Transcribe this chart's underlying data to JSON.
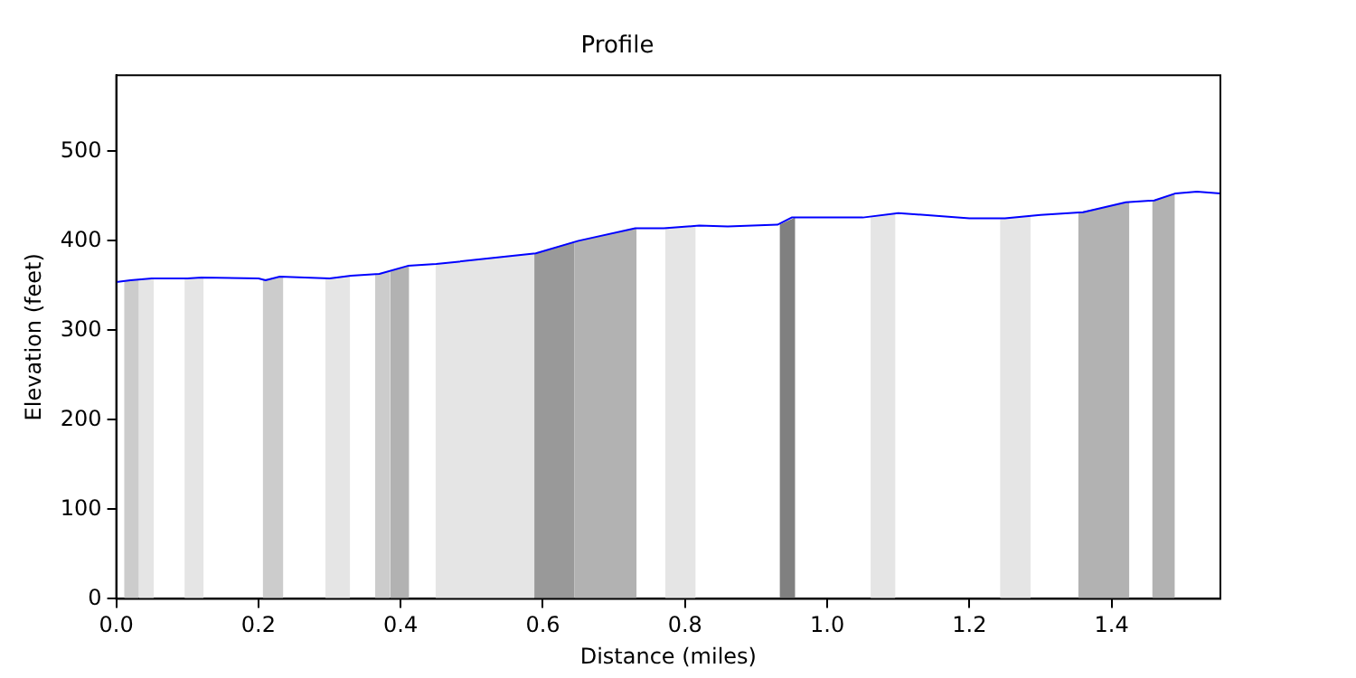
{
  "chart_data": {
    "type": "line",
    "title": "Profile",
    "xlabel": "Distance (miles)",
    "ylabel": "Elevation (feet)",
    "xlim": [
      0,
      1.553
    ],
    "xticks": [
      {
        "value": 0,
        "label": "0.0"
      },
      0.2,
      0.4,
      0.6,
      0.8,
      {
        "value": 1,
        "label": "1.0"
      },
      1.2,
      1.4
    ],
    "ylim": [
      0,
      585
    ],
    "yticks": [
      0,
      100,
      200,
      300,
      400,
      500
    ],
    "grid": false,
    "legend": false,
    "marker": "none",
    "line_style": "solid",
    "series": [
      {
        "type": "line",
        "color": "#0000ff",
        "x": [
          0,
          0.02,
          0.05,
          0.1,
          0.12,
          0.2,
          0.21,
          0.23,
          0.3,
          0.33,
          0.37,
          0.41,
          0.45,
          0.59,
          0.65,
          0.73,
          0.77,
          0.82,
          0.86,
          0.93,
          0.95,
          1.05,
          1.1,
          1.2,
          1.25,
          1.3,
          1.36,
          1.42,
          1.46,
          1.49,
          1.52,
          1.553
        ],
        "values": [
          354,
          356,
          358,
          358,
          359,
          358,
          356,
          360,
          358,
          361,
          363,
          372,
          374,
          386,
          400,
          414,
          414,
          417,
          416,
          418,
          426,
          426,
          431,
          425,
          425,
          429,
          432,
          443,
          445,
          453,
          455,
          453
        ]
      },
      {
        "type": "area",
        "color": "#cccccc",
        "x": [
          0.011,
          0.032
        ],
        "values": [
          355,
          357
        ]
      },
      {
        "type": "area",
        "color": "#e5e5e5",
        "x": [
          0.032,
          0.053
        ],
        "values": [
          357,
          358
        ]
      },
      {
        "type": "area",
        "color": "#e5e5e5",
        "x": [
          0.096,
          0.123
        ],
        "values": [
          358,
          359
        ]
      },
      {
        "type": "area",
        "color": "#cccccc",
        "x": [
          0.206,
          0.235
        ],
        "values": [
          357,
          360
        ]
      },
      {
        "type": "area",
        "color": "#e5e5e5",
        "x": [
          0.294,
          0.329
        ],
        "values": [
          358,
          361
        ]
      },
      {
        "type": "area",
        "color": "#cccccc",
        "x": [
          0.364,
          0.385
        ],
        "values": [
          363,
          366
        ]
      },
      {
        "type": "area",
        "color": "#b2b2b2",
        "x": [
          0.385,
          0.412
        ],
        "values": [
          366,
          372
        ]
      },
      {
        "type": "area",
        "color": "#e5e5e5",
        "x": [
          0.449,
          0.588
        ],
        "values": [
          374,
          386
        ]
      },
      {
        "type": "area",
        "color": "#999999",
        "x": [
          0.588,
          0.644
        ],
        "values": [
          386,
          399
        ]
      },
      {
        "type": "area",
        "color": "#b2b2b2",
        "x": [
          0.644,
          0.732
        ],
        "values": [
          399,
          414
        ]
      },
      {
        "type": "area",
        "color": "#e5e5e5",
        "x": [
          0.772,
          0.815
        ],
        "values": [
          414,
          417
        ]
      },
      {
        "type": "area",
        "color": "#808080",
        "x": [
          0.933,
          0.955
        ],
        "values": [
          418,
          426
        ]
      },
      {
        "type": "area",
        "color": "#e5e5e5",
        "x": [
          1.061,
          1.096
        ],
        "values": [
          427,
          431
        ]
      },
      {
        "type": "area",
        "color": "#e5e5e5",
        "x": [
          1.243,
          1.286
        ],
        "values": [
          425,
          428
        ]
      },
      {
        "type": "area",
        "color": "#b2b2b2",
        "x": [
          1.353,
          1.425
        ],
        "values": [
          432,
          443
        ]
      },
      {
        "type": "area",
        "color": "#b2b2b2",
        "x": [
          1.457,
          1.489
        ],
        "values": [
          445,
          453
        ]
      }
    ]
  }
}
